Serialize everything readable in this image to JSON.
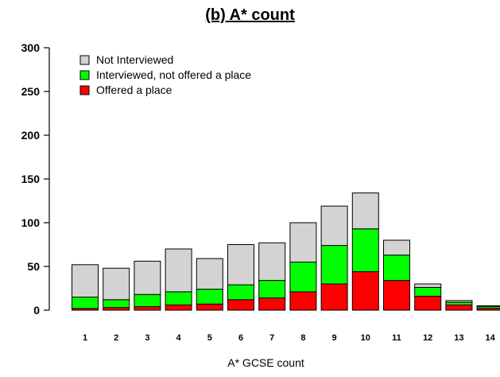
{
  "chart_data": {
    "type": "bar",
    "stacked": true,
    "title": "(b) A* count",
    "xlabel": "A* GCSE count",
    "ylabel": "",
    "ylim": [
      0,
      300
    ],
    "yticks": [
      0,
      50,
      100,
      150,
      200,
      250,
      300
    ],
    "grid": false,
    "legend_position": "top-left",
    "categories": [
      "1",
      "2",
      "3",
      "4",
      "5",
      "6",
      "7",
      "8",
      "9",
      "10",
      "11",
      "12",
      "13",
      "14"
    ],
    "series": [
      {
        "name": "Offered a place",
        "color": "#ff0000",
        "values": [
          2,
          3,
          4,
          6,
          7,
          12,
          14,
          21,
          30,
          44,
          34,
          16,
          6,
          2
        ]
      },
      {
        "name": "Interviewed, not offered a place",
        "color": "#00ff00",
        "values": [
          13,
          9,
          14,
          15,
          17,
          17,
          20,
          34,
          44,
          49,
          29,
          10,
          3,
          2
        ]
      },
      {
        "name": "Not Interviewed",
        "color": "#d3d3d3",
        "values": [
          37,
          36,
          38,
          49,
          35,
          46,
          43,
          45,
          45,
          41,
          17,
          4,
          2,
          1
        ]
      }
    ],
    "legend_order": [
      "Not Interviewed",
      "Interviewed, not offered a place",
      "Offered a place"
    ]
  }
}
